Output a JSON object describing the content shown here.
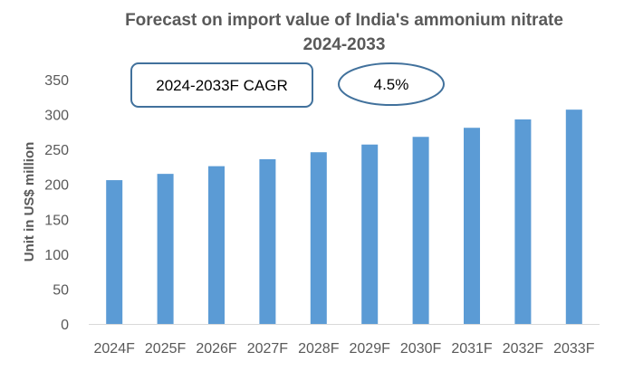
{
  "chart_data": {
    "type": "bar",
    "title": "Forecast on import value of India's ammonium nitrate",
    "subtitle": "2024-2033",
    "xlabel": "",
    "ylabel": "Unit in US$ million",
    "categories": [
      "2024F",
      "2025F",
      "2026F",
      "2027F",
      "2028F",
      "2029F",
      "2030F",
      "2031F",
      "2032F",
      "2033F"
    ],
    "series": [
      {
        "name": "Import value",
        "values": [
          206,
          215,
          226,
          236,
          246,
          257,
          268,
          281,
          293,
          307
        ],
        "color": "#5b9bd5"
      }
    ],
    "ylim": [
      0,
      350
    ],
    "yticks": [
      0,
      50,
      100,
      150,
      200,
      250,
      300,
      350
    ],
    "grid": false,
    "legend": "none",
    "annotations": {
      "cagr_label": "2024-2033F CAGR",
      "cagr_value": "4.5%",
      "outline_color": "#41719c"
    }
  }
}
